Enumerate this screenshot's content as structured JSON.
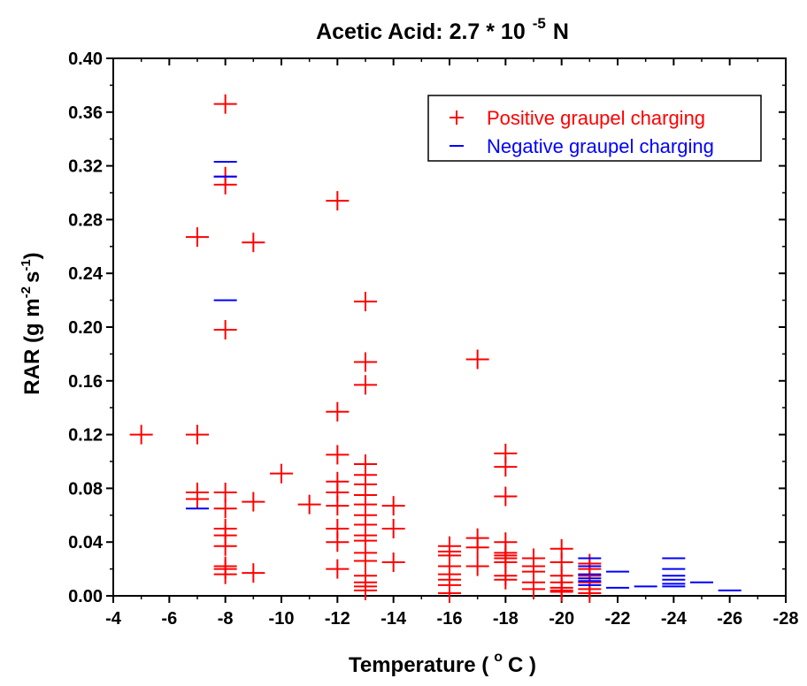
{
  "chart_data": {
    "type": "scatter",
    "title_main": "Acetic Acid: 2.7 * 10",
    "title_exp": "-5",
    "title_unit": "N",
    "xlabel_main": "Temperature (",
    "xlabel_deg": "o",
    "xlabel_unit": "C )",
    "ylabel_main": "RAR (g m",
    "ylabel_exp1": "-2",
    "ylabel_mid": "s",
    "ylabel_exp2": "-1",
    "ylabel_close": ")",
    "xlim": [
      -4,
      -28
    ],
    "ylim": [
      0,
      0.4
    ],
    "x_ticks": [
      -4,
      -6,
      -8,
      -10,
      -12,
      -14,
      -16,
      -18,
      -20,
      -22,
      -24,
      -26,
      -28
    ],
    "x_tick_labels": [
      "-4",
      "-6",
      "-8",
      "-10",
      "-12",
      "-14",
      "-16",
      "-18",
      "-20",
      "-22",
      "-24",
      "-26",
      "-28"
    ],
    "y_ticks": [
      0,
      0.04,
      0.08,
      0.12,
      0.16,
      0.2,
      0.24,
      0.28,
      0.32,
      0.36,
      0.4
    ],
    "y_tick_labels": [
      "0.00",
      "0.04",
      "0.08",
      "0.12",
      "0.16",
      "0.20",
      "0.24",
      "0.28",
      "0.32",
      "0.36",
      "0.40"
    ],
    "grid": false,
    "legend_position": "top-right",
    "colors": {
      "positive": "#ff0000",
      "negative": "#0000ff"
    },
    "series": [
      {
        "name": "Positive graupel charging",
        "marker": "plus",
        "points": [
          [
            -5,
            0.12
          ],
          [
            -7,
            0.267
          ],
          [
            -7,
            0.12
          ],
          [
            -7,
            0.077
          ],
          [
            -7,
            0.072
          ],
          [
            -8,
            0.366
          ],
          [
            -8,
            0.312
          ],
          [
            -8,
            0.306
          ],
          [
            -8,
            0.198
          ],
          [
            -8,
            0.077
          ],
          [
            -8,
            0.065
          ],
          [
            -8,
            0.05
          ],
          [
            -8,
            0.045
          ],
          [
            -8,
            0.037
          ],
          [
            -8,
            0.022
          ],
          [
            -8,
            0.02
          ],
          [
            -8,
            0.016
          ],
          [
            -9,
            0.263
          ],
          [
            -9,
            0.07
          ],
          [
            -9,
            0.017
          ],
          [
            -10,
            0.091
          ],
          [
            -11,
            0.068
          ],
          [
            -12,
            0.294
          ],
          [
            -12,
            0.137
          ],
          [
            -12,
            0.105
          ],
          [
            -12,
            0.085
          ],
          [
            -12,
            0.077
          ],
          [
            -12,
            0.067
          ],
          [
            -12,
            0.05
          ],
          [
            -12,
            0.04
          ],
          [
            -12,
            0.02
          ],
          [
            -13,
            0.219
          ],
          [
            -13,
            0.174
          ],
          [
            -13,
            0.157
          ],
          [
            -13,
            0.098
          ],
          [
            -13,
            0.09
          ],
          [
            -13,
            0.083
          ],
          [
            -13,
            0.075
          ],
          [
            -13,
            0.068
          ],
          [
            -13,
            0.06
          ],
          [
            -13,
            0.053
          ],
          [
            -13,
            0.045
          ],
          [
            -13,
            0.041
          ],
          [
            -13,
            0.032
          ],
          [
            -13,
            0.026
          ],
          [
            -13,
            0.015
          ],
          [
            -13,
            0.01
          ],
          [
            -13,
            0.007
          ],
          [
            -13,
            0.004
          ],
          [
            -14,
            0.067
          ],
          [
            -14,
            0.05
          ],
          [
            -14,
            0.025
          ],
          [
            -16,
            0.037
          ],
          [
            -16,
            0.033
          ],
          [
            -16,
            0.03
          ],
          [
            -16,
            0.022
          ],
          [
            -16,
            0.016
          ],
          [
            -16,
            0.012
          ],
          [
            -16,
            0.008
          ],
          [
            -16,
            0.002
          ],
          [
            -17,
            0.176
          ],
          [
            -17,
            0.043
          ],
          [
            -17,
            0.036
          ],
          [
            -17,
            0.022
          ],
          [
            -18,
            0.106
          ],
          [
            -18,
            0.096
          ],
          [
            -18,
            0.074
          ],
          [
            -18,
            0.04
          ],
          [
            -18,
            0.032
          ],
          [
            -18,
            0.03
          ],
          [
            -18,
            0.028
          ],
          [
            -18,
            0.025
          ],
          [
            -18,
            0.015
          ],
          [
            -18,
            0.012
          ],
          [
            -19,
            0.028
          ],
          [
            -19,
            0.022
          ],
          [
            -19,
            0.018
          ],
          [
            -19,
            0.01
          ],
          [
            -19,
            0.005
          ],
          [
            -20,
            0.035
          ],
          [
            -20,
            0.025
          ],
          [
            -20,
            0.015
          ],
          [
            -20,
            0.01
          ],
          [
            -20,
            0.006
          ],
          [
            -20,
            0.004
          ],
          [
            -20,
            0.003
          ],
          [
            -21,
            0.024
          ],
          [
            -21,
            0.02
          ],
          [
            -21,
            0.015
          ],
          [
            -21,
            0.01
          ],
          [
            -21,
            0.005
          ],
          [
            -21,
            0.002
          ]
        ]
      },
      {
        "name": "Negative graupel charging",
        "marker": "dash",
        "points": [
          [
            -8,
            0.323
          ],
          [
            -8,
            0.312
          ],
          [
            -8,
            0.22
          ],
          [
            -7,
            0.065
          ],
          [
            -21,
            0.028
          ],
          [
            -21,
            0.022
          ],
          [
            -21,
            0.016
          ],
          [
            -21,
            0.013
          ],
          [
            -21,
            0.011
          ],
          [
            -21,
            0.008
          ],
          [
            -22,
            0.018
          ],
          [
            -22,
            0.006
          ],
          [
            -23,
            0.007
          ],
          [
            -24,
            0.028
          ],
          [
            -24,
            0.02
          ],
          [
            -24,
            0.015
          ],
          [
            -24,
            0.012
          ],
          [
            -24,
            0.009
          ],
          [
            -24,
            0.007
          ],
          [
            -25,
            0.01
          ],
          [
            -26,
            0.004
          ]
        ]
      }
    ]
  }
}
